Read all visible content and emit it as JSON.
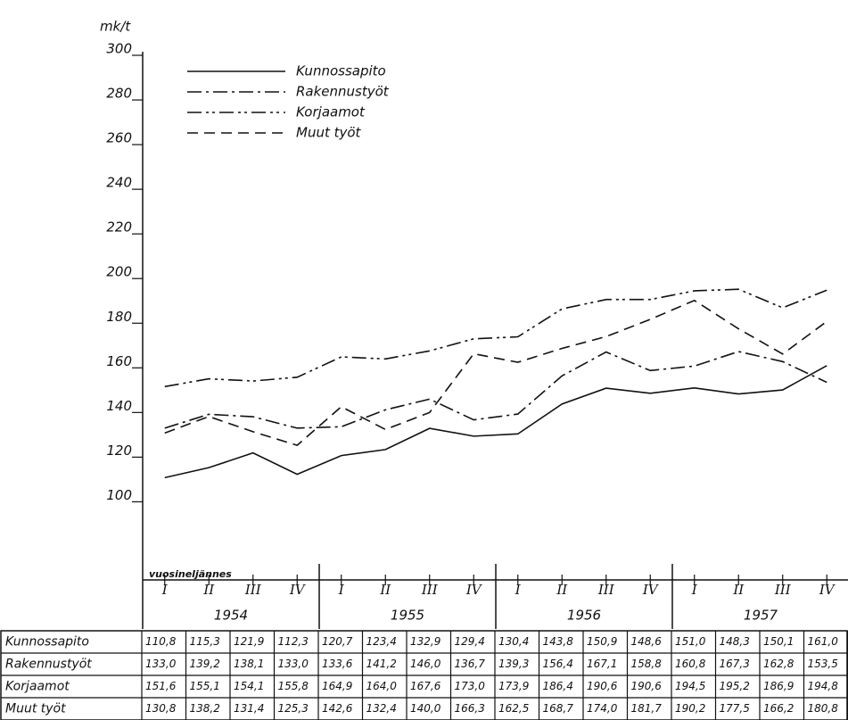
{
  "chart_data": {
    "type": "line",
    "y_label": "mk/t",
    "x_label": "vuosineljännes",
    "categories": [
      "I",
      "II",
      "III",
      "IV",
      "I",
      "II",
      "III",
      "IV",
      "I",
      "II",
      "III",
      "IV",
      "I",
      "II",
      "III",
      "IV"
    ],
    "years": [
      "1954",
      "1955",
      "1956",
      "1957"
    ],
    "ylim": [
      65,
      300
    ],
    "yticks": [
      100,
      120,
      140,
      160,
      180,
      200,
      220,
      240,
      260,
      280,
      300
    ],
    "series": [
      {
        "name": "Kunnossapito",
        "color": "#111111",
        "style": "solid",
        "values": [
          110.8,
          115.3,
          121.9,
          112.3,
          120.7,
          123.4,
          132.9,
          129.4,
          130.4,
          143.8,
          150.9,
          148.6,
          151.0,
          148.3,
          150.1,
          161.0
        ],
        "value_labels": [
          "110,8",
          "115,3",
          "121,9",
          "112,3",
          "120,7",
          "123,4",
          "132,9",
          "129,4",
          "130,4",
          "143,8",
          "150,9",
          "148,6",
          "151,0",
          "148,3",
          "150,1",
          "161,0"
        ]
      },
      {
        "name": "Rakennustyöt",
        "color": "#111111",
        "style": "dashdot",
        "values": [
          133.0,
          139.2,
          138.1,
          133.0,
          133.6,
          141.2,
          146.0,
          136.7,
          139.3,
          156.4,
          167.1,
          158.8,
          160.8,
          167.3,
          162.8,
          153.5
        ],
        "value_labels": [
          "133,0",
          "139,2",
          "138,1",
          "133,0",
          "133,6",
          "141,2",
          "146,0",
          "136,7",
          "139,3",
          "156,4",
          "167,1",
          "158,8",
          "160,8",
          "167,3",
          "162,8",
          "153,5"
        ]
      },
      {
        "name": "Korjaamot",
        "color": "#111111",
        "style": "dashdotdot",
        "values": [
          151.6,
          155.1,
          154.1,
          155.8,
          164.9,
          164.0,
          167.6,
          173.0,
          173.9,
          186.4,
          190.6,
          190.6,
          194.5,
          195.2,
          186.9,
          194.8
        ],
        "value_labels": [
          "151,6",
          "155,1",
          "154,1",
          "155,8",
          "164,9",
          "164,0",
          "167,6",
          "173,0",
          "173,9",
          "186,4",
          "190,6",
          "190,6",
          "194,5",
          "195,2",
          "186,9",
          "194,8"
        ]
      },
      {
        "name": "Muut työt",
        "color": "#111111",
        "style": "dashed",
        "values": [
          130.8,
          138.2,
          131.4,
          125.3,
          142.6,
          132.4,
          140.0,
          166.3,
          162.5,
          168.7,
          174.0,
          181.7,
          190.2,
          177.5,
          166.2,
          180.8
        ],
        "value_labels": [
          "130,8",
          "138,2",
          "131,4",
          "125,3",
          "142,6",
          "132,4",
          "140,0",
          "166,3",
          "162,5",
          "168,7",
          "174,0",
          "181,7",
          "190,2",
          "177,5",
          "166,2",
          "180,8"
        ]
      }
    ]
  }
}
